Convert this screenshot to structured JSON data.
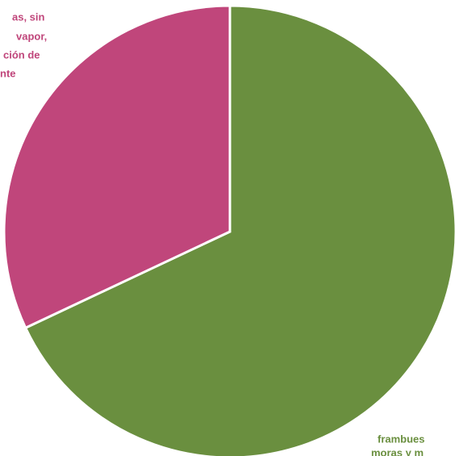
{
  "chart_data": {
    "type": "pie",
    "labels": [
      [
        "frambues",
        "moras y m"
      ],
      [
        "as, sin",
        "vapor,",
        "ción de",
        "nte"
      ]
    ],
    "values": [
      68,
      32
    ],
    "colors": [
      "#6a8f3f",
      "#c0467b"
    ],
    "start_angle": 0,
    "direction": "clockwise"
  }
}
